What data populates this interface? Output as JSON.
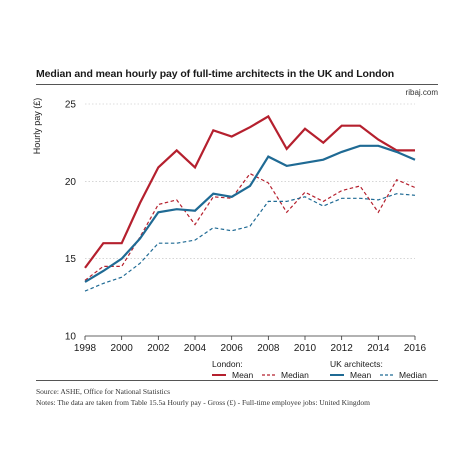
{
  "title": "Median and mean hourly pay of full-time architects in the UK and London",
  "credit": "ribaj.com",
  "source_line": "Source: ASHE, Office for National Statistics",
  "notes_line": "Notes: The data are taken from Table 15.5a  Hourly pay - Gross (£) - Full-time employee jobs: United Kingdom",
  "legend": {
    "group_london": "London:",
    "group_uk": "UK architects:",
    "mean": "Mean",
    "median": "Median"
  },
  "colors": {
    "london": "#b5202e",
    "uk": "#1f6a94",
    "grid": "#bdbdbd"
  },
  "chart_data": {
    "type": "line",
    "ylabel": "Hourly pay (£)",
    "xlim": [
      1998,
      2016
    ],
    "ylim": [
      10,
      25
    ],
    "x_ticks": [
      1998,
      2000,
      2002,
      2004,
      2006,
      2008,
      2010,
      2012,
      2014,
      2016
    ],
    "y_ticks": [
      10,
      15,
      20,
      25
    ],
    "grid": "horizontal",
    "x": [
      1998,
      1999,
      2000,
      2001,
      2002,
      2003,
      2004,
      2005,
      2006,
      2007,
      2008,
      2009,
      2010,
      2011,
      2012,
      2013,
      2014,
      2015,
      2016
    ],
    "series": [
      {
        "key": "london_mean",
        "group": "London",
        "name": "Mean",
        "color": "#b5202e",
        "dash": false,
        "values": [
          14.4,
          16.0,
          16.0,
          18.6,
          20.9,
          22.0,
          20.9,
          23.3,
          22.9,
          23.5,
          24.2,
          22.1,
          23.4,
          22.5,
          23.6,
          23.6,
          22.7,
          22.0,
          22.0
        ]
      },
      {
        "key": "london_median",
        "group": "London",
        "name": "Median",
        "color": "#b5202e",
        "dash": true,
        "values": [
          13.6,
          14.5,
          14.5,
          16.4,
          18.5,
          18.8,
          17.2,
          19.0,
          18.9,
          20.5,
          19.9,
          18.0,
          19.3,
          18.7,
          19.4,
          19.7,
          18.0,
          20.1,
          19.6
        ]
      },
      {
        "key": "uk_mean",
        "group": "UK architects",
        "name": "Mean",
        "color": "#1f6a94",
        "dash": false,
        "values": [
          13.5,
          14.2,
          15.0,
          16.3,
          18.0,
          18.2,
          18.1,
          19.2,
          19.0,
          19.7,
          21.6,
          21.0,
          21.2,
          21.4,
          21.9,
          22.3,
          22.3,
          21.9,
          21.4
        ]
      },
      {
        "key": "uk_median",
        "group": "UK architects",
        "name": "Median",
        "color": "#1f6a94",
        "dash": true,
        "values": [
          12.9,
          13.4,
          13.8,
          14.7,
          16.0,
          16.0,
          16.2,
          17.0,
          16.8,
          17.1,
          18.7,
          18.7,
          19.0,
          18.4,
          18.9,
          18.9,
          18.8,
          19.2,
          19.1
        ]
      }
    ]
  }
}
